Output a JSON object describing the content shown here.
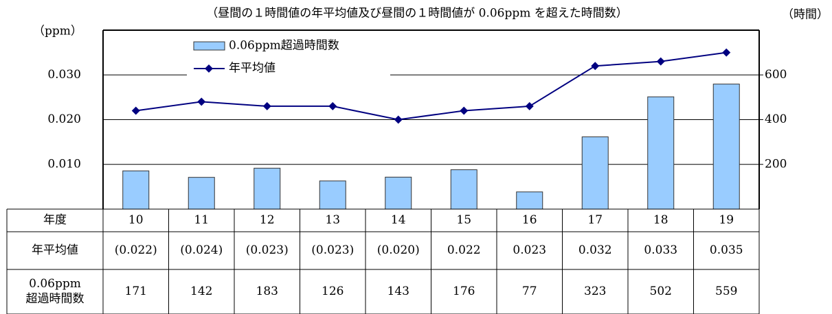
{
  "chart_data": {
    "type": "combo",
    "title": "（昼間の１時間値の年平均値及び昼間の１時間値が 0.06ppm を超えた時間数）",
    "y_label": "（ppm）",
    "y2_label": "（時間）",
    "categories": [
      "10",
      "11",
      "12",
      "13",
      "14",
      "15",
      "16",
      "17",
      "18",
      "19"
    ],
    "series": [
      {
        "name": "0.06ppm超過時間数",
        "type": "bar",
        "axis": "y2",
        "color": "#99ccff",
        "values": [
          171,
          142,
          183,
          126,
          143,
          176,
          77,
          323,
          502,
          559
        ]
      },
      {
        "name": "年平均値",
        "type": "line",
        "axis": "y",
        "color": "#000080",
        "values": [
          0.022,
          0.024,
          0.023,
          0.023,
          0.02,
          0.022,
          0.023,
          0.032,
          0.033,
          0.035
        ],
        "value_labels": [
          "(0.022)",
          "(0.024)",
          "(0.023)",
          "(0.023)",
          "(0.020)",
          "0.022",
          "0.023",
          "0.032",
          "0.033",
          "0.035"
        ]
      }
    ],
    "ylim": [
      0,
      0.04
    ],
    "yticks": [
      {
        "value": 0.01,
        "label": "0.010"
      },
      {
        "value": 0.02,
        "label": "0.020"
      },
      {
        "value": 0.03,
        "label": "0.030"
      }
    ],
    "y2lim": [
      0,
      800
    ],
    "y2ticks": [
      200,
      400,
      600
    ],
    "grid": true,
    "table": {
      "header": "年度",
      "row_label_lines": [
        "0.06ppm",
        "超過時間数"
      ]
    }
  }
}
